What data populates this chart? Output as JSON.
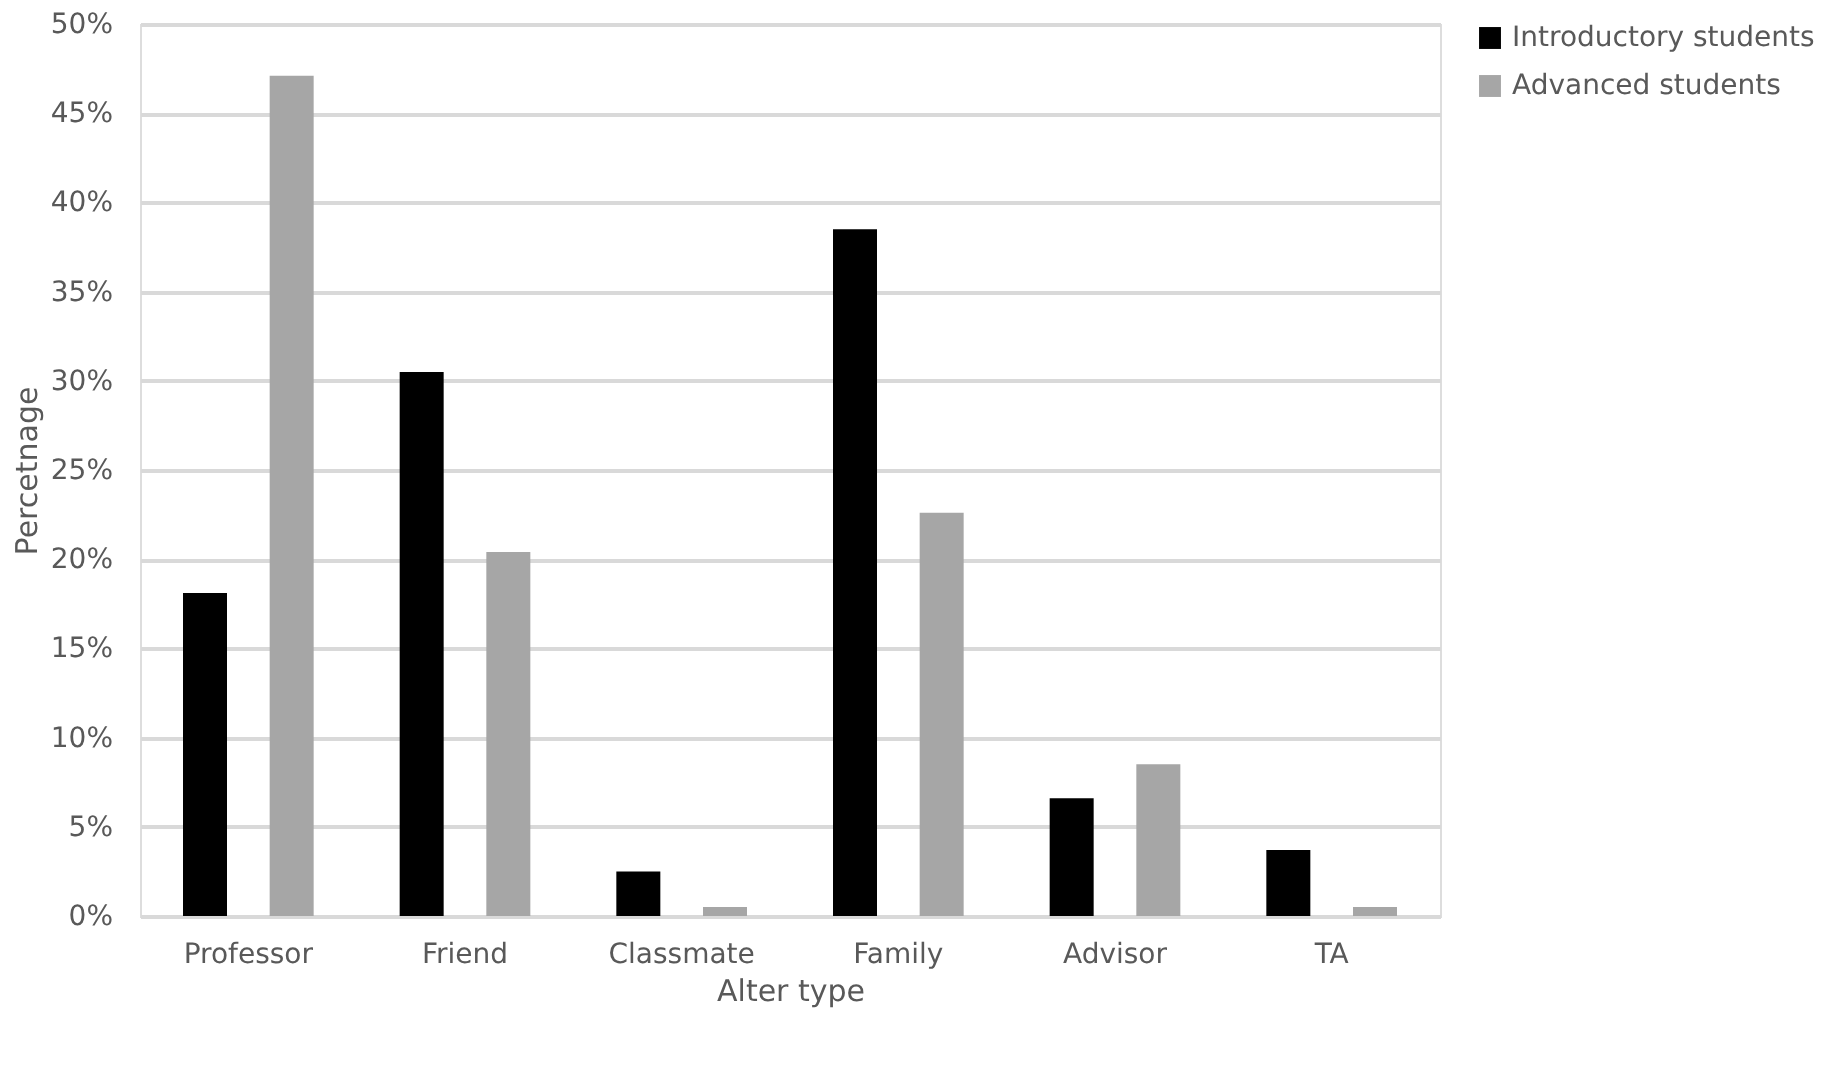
{
  "chart_data": {
    "type": "bar",
    "xlabel": "Alter type",
    "ylabel": "Percetnage",
    "categories": [
      "Professor",
      "Friend",
      "Classmate",
      "Family",
      "Advisor",
      "TA"
    ],
    "series": [
      {
        "name": "Introductory students",
        "color": "#000000",
        "values": [
          18.1,
          30.5,
          2.5,
          38.5,
          6.6,
          3.7
        ]
      },
      {
        "name": "Advanced students",
        "color": "#a6a6a6",
        "values": [
          47.1,
          20.4,
          0.5,
          22.6,
          8.5,
          0.5
        ]
      }
    ],
    "ylim": [
      0,
      50
    ],
    "yticks": [
      {
        "value": 0,
        "label": "0%"
      },
      {
        "value": 5,
        "label": "5%"
      },
      {
        "value": 10,
        "label": "10%"
      },
      {
        "value": 15,
        "label": "15%"
      },
      {
        "value": 20,
        "label": "20%"
      },
      {
        "value": 25,
        "label": "25%"
      },
      {
        "value": 30,
        "label": "30%"
      },
      {
        "value": 35,
        "label": "35%"
      },
      {
        "value": 40,
        "label": "40%"
      },
      {
        "value": 45,
        "label": "45%"
      },
      {
        "value": 50,
        "label": "50%"
      }
    ],
    "grid": "y",
    "legend": "right"
  }
}
